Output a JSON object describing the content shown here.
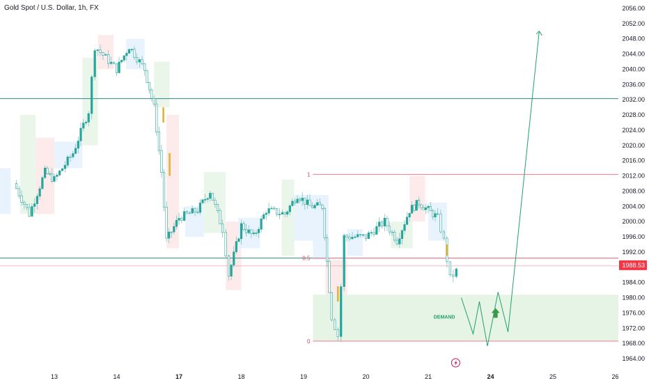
{
  "header": {
    "symbol_title": "Gold Spot / U.S. Dollar, 1h, FX"
  },
  "colors": {
    "up": "#26a69a",
    "down": "#26a69a",
    "wick": "#7fbfbf",
    "accent_candle": "#e8b22c",
    "fib_line": "#f07b8a",
    "fib_label": "#e0405a",
    "hline": "#2a8a8a",
    "demand_fill": "#e6f4e6",
    "projection": "#22a06b",
    "price_tag": "#f23645",
    "zone_green": "#e9f5e9",
    "zone_red": "#fde9ea",
    "zone_blue": "#e6f2fd"
  },
  "chart_data": {
    "type": "candlestick",
    "title": "Gold Spot / U.S. Dollar, 1h, FX",
    "y_axis": {
      "range": [
        1962,
        2058
      ],
      "ticks": [
        "1964.00",
        "1968.00",
        "1972.00",
        "1976.00",
        "1980.00",
        "1984.00",
        "1988.00",
        "1992.00",
        "1996.00",
        "2000.00",
        "2004.00",
        "2008.00",
        "2012.00",
        "2016.00",
        "2020.00",
        "2024.00",
        "2028.00",
        "2032.00",
        "2036.00",
        "2040.00",
        "2044.00",
        "2048.00",
        "2052.00",
        "2056.00"
      ]
    },
    "x_axis": {
      "labels": [
        {
          "text": "13",
          "day": 13,
          "bold": false
        },
        {
          "text": "14",
          "day": 14,
          "bold": false
        },
        {
          "text": "17",
          "day": 15,
          "bold": true
        },
        {
          "text": "18",
          "day": 16,
          "bold": false
        },
        {
          "text": "19",
          "day": 17,
          "bold": false
        },
        {
          "text": "20",
          "day": 18,
          "bold": false
        },
        {
          "text": "21",
          "day": 19,
          "bold": false
        },
        {
          "text": "24",
          "day": 20,
          "bold": true
        },
        {
          "text": "25",
          "day": 21,
          "bold": false
        },
        {
          "text": "26",
          "day": 22,
          "bold": false
        }
      ]
    },
    "last_price": "1988.53",
    "horizontal_lines": [
      2032.3,
      1990.4
    ],
    "fib_levels": [
      {
        "label": "1",
        "price": 2012.4
      },
      {
        "label": "0.5",
        "price": 1990.4
      },
      {
        "label": "0",
        "price": 1968.6
      }
    ],
    "demand_zone": {
      "label": "DEMAND",
      "price_top": 1980.8,
      "price_bottom": 1968.6,
      "start_day": 17.15
    },
    "path_key_points": [
      [
        12.35,
        2010
      ],
      [
        12.6,
        2002
      ],
      [
        12.85,
        2013
      ],
      [
        13.0,
        2011
      ],
      [
        13.3,
        2018
      ],
      [
        13.55,
        2029
      ],
      [
        13.65,
        2046
      ],
      [
        14.0,
        2040
      ],
      [
        14.2,
        2046
      ],
      [
        14.45,
        2040
      ],
      [
        14.6,
        2030
      ],
      [
        14.72,
        2013
      ],
      [
        14.8,
        1995
      ],
      [
        15.0,
        2001
      ],
      [
        15.3,
        2003
      ],
      [
        15.5,
        2008
      ],
      [
        15.7,
        1998
      ],
      [
        15.8,
        1986
      ],
      [
        16.0,
        1999
      ],
      [
        16.2,
        1996
      ],
      [
        16.4,
        2003
      ],
      [
        16.7,
        2002
      ],
      [
        16.9,
        2007
      ],
      [
        17.1,
        2004
      ],
      [
        17.3,
        2004
      ],
      [
        17.45,
        1975
      ],
      [
        17.55,
        1970
      ],
      [
        17.65,
        1996
      ],
      [
        18.0,
        1996
      ],
      [
        18.3,
        2000
      ],
      [
        18.5,
        1995
      ],
      [
        18.7,
        2003
      ],
      [
        18.85,
        2005
      ],
      [
        19.0,
        2003
      ],
      [
        19.15,
        2001
      ],
      [
        19.25,
        1995
      ],
      [
        19.35,
        1985
      ],
      [
        19.45,
        1987
      ]
    ],
    "projection_path": [
      [
        19.53,
        1980
      ],
      [
        19.72,
        1970.5
      ],
      [
        19.82,
        1979
      ],
      [
        19.95,
        1967.3
      ],
      [
        20.12,
        1981.5
      ],
      [
        20.28,
        1971
      ],
      [
        20.78,
        2050
      ]
    ]
  }
}
